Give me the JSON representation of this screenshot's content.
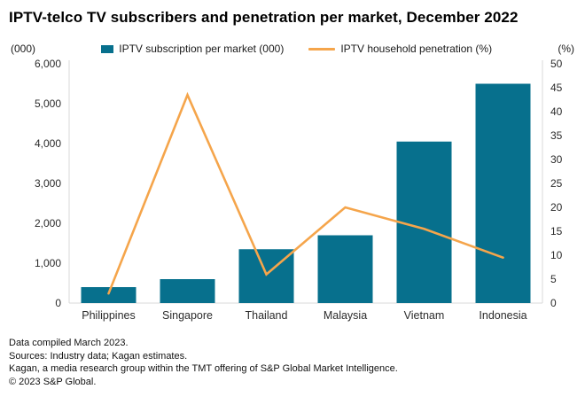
{
  "header": {
    "title": "IPTV-telco TV subscribers and penetration per market, December 2022"
  },
  "chart_data": {
    "type": "bar+line",
    "categories": [
      "Philippines",
      "Singapore",
      "Thailand",
      "Malaysia",
      "Vietnam",
      "Indonesia"
    ],
    "series": [
      {
        "name": "IPTV subscription per market (000)",
        "type": "bar",
        "axis": "left",
        "color": "#07708d",
        "values": [
          400,
          600,
          1350,
          1700,
          4050,
          5500
        ]
      },
      {
        "name": "IPTV household penetration (%)",
        "type": "line",
        "axis": "right",
        "color": "#f5a54b",
        "values": [
          2,
          43.5,
          6,
          20,
          15.5,
          9.5
        ]
      }
    ],
    "left_axis": {
      "label": "(000)",
      "min": 0,
      "max": 6000,
      "step": 1000
    },
    "right_axis": {
      "label": "(%)",
      "min": 0,
      "max": 50,
      "step": 5
    },
    "grid": false,
    "legend_position": "top",
    "axis_line_color": "#d9d9d9"
  },
  "footer": {
    "lines": [
      "Data compiled March 2023.",
      "Sources: Industry data; Kagan estimates.",
      "Kagan, a media research group within the TMT offering of S&P Global Market Intelligence.",
      "© 2023 S&P Global."
    ]
  }
}
